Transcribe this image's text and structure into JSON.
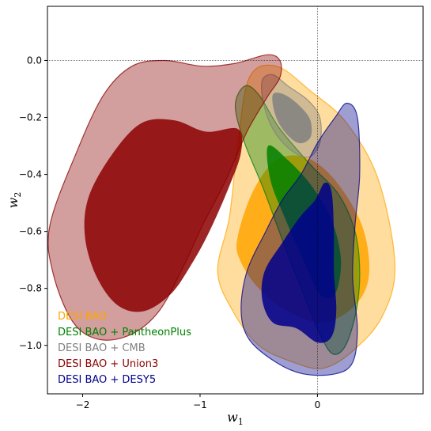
{
  "chart_data": {
    "type": "contour",
    "xlabel": "w",
    "xlabel_sub": "1",
    "ylabel": "w",
    "ylabel_sub": "2",
    "xlim": [
      -2.3,
      0.9
    ],
    "ylim": [
      -1.17,
      0.19
    ],
    "xticks": [
      -2,
      -1,
      0
    ],
    "xtick_labels": [
      "−2",
      "−1",
      "0"
    ],
    "yticks": [
      0.0,
      -0.2,
      -0.4,
      -0.6,
      -0.8,
      -1.0
    ],
    "ytick_labels": [
      "0.0",
      "−0.2",
      "−0.4",
      "−0.6",
      "−0.8",
      "−1.0"
    ],
    "reference_lines": {
      "x": 0,
      "y": 0
    },
    "grid": false,
    "legend_position": "lower-left",
    "series": [
      {
        "name": "DESI BAO",
        "color": "#FFA500",
        "contours": [
          {
            "level": "95%",
            "points": [
              [
                -0.75,
                -0.55
              ],
              [
                -0.68,
                -0.3
              ],
              [
                -0.58,
                -0.06
              ],
              [
                -0.35,
                -0.02
              ],
              [
                -0.05,
                -0.11
              ],
              [
                0.25,
                -0.22
              ],
              [
                0.52,
                -0.42
              ],
              [
                0.66,
                -0.72
              ],
              [
                0.55,
                -0.9
              ],
              [
                0.3,
                -1.02
              ],
              [
                0.05,
                -1.08
              ],
              [
                -0.2,
                -1.06
              ],
              [
                -0.5,
                -1.0
              ],
              [
                -0.72,
                -0.88
              ],
              [
                -0.85,
                -0.74
              ]
            ]
          },
          {
            "level": "68%",
            "points": [
              [
                -0.68,
                -0.62
              ],
              [
                -0.55,
                -0.46
              ],
              [
                -0.35,
                -0.35
              ],
              [
                -0.1,
                -0.34
              ],
              [
                0.15,
                -0.42
              ],
              [
                0.38,
                -0.58
              ],
              [
                0.44,
                -0.75
              ],
              [
                0.32,
                -0.86
              ],
              [
                0.05,
                -0.92
              ],
              [
                -0.25,
                -0.88
              ],
              [
                -0.5,
                -0.8
              ],
              [
                -0.66,
                -0.7
              ]
            ]
          }
        ]
      },
      {
        "name": "DESI BAO + PantheonPlus",
        "color": "#008000",
        "contours": [
          {
            "level": "95%",
            "points": [
              [
                -0.7,
                -0.16
              ],
              [
                -0.62,
                -0.09
              ],
              [
                -0.5,
                -0.12
              ],
              [
                -0.32,
                -0.24
              ],
              [
                -0.05,
                -0.37
              ],
              [
                0.18,
                -0.47
              ],
              [
                0.32,
                -0.6
              ],
              [
                0.36,
                -0.74
              ],
              [
                0.33,
                -0.88
              ],
              [
                0.24,
                -1.0
              ],
              [
                0.13,
                -1.03
              ],
              [
                0.02,
                -0.96
              ],
              [
                -0.1,
                -0.84
              ],
              [
                -0.28,
                -0.65
              ],
              [
                -0.46,
                -0.45
              ],
              [
                -0.62,
                -0.29
              ]
            ]
          },
          {
            "level": "68%",
            "points": [
              [
                -0.42,
                -0.3
              ],
              [
                -0.25,
                -0.35
              ],
              [
                -0.05,
                -0.44
              ],
              [
                0.12,
                -0.56
              ],
              [
                0.2,
                -0.7
              ],
              [
                0.15,
                -0.82
              ],
              [
                0.02,
                -0.82
              ],
              [
                -0.12,
                -0.7
              ],
              [
                -0.28,
                -0.55
              ],
              [
                -0.4,
                -0.42
              ]
            ]
          }
        ]
      },
      {
        "name": "DESI BAO + CMB",
        "color": "#808080",
        "contours": [
          {
            "level": "95%",
            "points": [
              [
                -0.47,
                -0.07
              ],
              [
                -0.38,
                -0.05
              ],
              [
                -0.25,
                -0.09
              ],
              [
                -0.08,
                -0.14
              ],
              [
                0.02,
                -0.2
              ],
              [
                0.02,
                -0.29
              ],
              [
                -0.08,
                -0.34
              ],
              [
                -0.24,
                -0.31
              ],
              [
                -0.38,
                -0.24
              ],
              [
                -0.46,
                -0.15
              ]
            ]
          },
          {
            "level": "68%",
            "points": [
              [
                -0.38,
                -0.12
              ],
              [
                -0.28,
                -0.12
              ],
              [
                -0.15,
                -0.16
              ],
              [
                -0.06,
                -0.21
              ],
              [
                -0.06,
                -0.27
              ],
              [
                -0.16,
                -0.29
              ],
              [
                -0.28,
                -0.25
              ],
              [
                -0.36,
                -0.19
              ]
            ]
          }
        ]
      },
      {
        "name": "DESI BAO + Union3",
        "color": "#8B0000",
        "contours": [
          {
            "level": "95%",
            "points": [
              [
                -2.05,
                -0.32
              ],
              [
                -1.82,
                -0.12
              ],
              [
                -1.58,
                -0.02
              ],
              [
                -1.3,
                0.0
              ],
              [
                -0.98,
                -0.02
              ],
              [
                -0.7,
                -0.01
              ],
              [
                -0.43,
                0.02
              ],
              [
                -0.32,
                0.0
              ],
              [
                -0.32,
                -0.06
              ],
              [
                -0.43,
                -0.13
              ],
              [
                -0.6,
                -0.25
              ],
              [
                -0.78,
                -0.42
              ],
              [
                -0.98,
                -0.58
              ],
              [
                -1.15,
                -0.73
              ],
              [
                -1.35,
                -0.88
              ],
              [
                -1.58,
                -0.96
              ],
              [
                -1.85,
                -0.98
              ],
              [
                -2.08,
                -0.92
              ],
              [
                -2.25,
                -0.75
              ],
              [
                -2.28,
                -0.58
              ]
            ]
          },
          {
            "level": "68%",
            "points": [
              [
                -1.95,
                -0.48
              ],
              [
                -1.75,
                -0.33
              ],
              [
                -1.5,
                -0.22
              ],
              [
                -1.22,
                -0.21
              ],
              [
                -0.95,
                -0.25
              ],
              [
                -0.68,
                -0.24
              ],
              [
                -0.65,
                -0.32
              ],
              [
                -0.75,
                -0.44
              ],
              [
                -0.92,
                -0.6
              ],
              [
                -1.08,
                -0.72
              ],
              [
                -1.25,
                -0.82
              ],
              [
                -1.48,
                -0.88
              ],
              [
                -1.7,
                -0.86
              ],
              [
                -1.88,
                -0.76
              ],
              [
                -1.98,
                -0.62
              ]
            ]
          }
        ]
      },
      {
        "name": "DESI BAO + DESY5",
        "color": "#00008B",
        "contours": [
          {
            "level": "95%",
            "points": [
              [
                0.15,
                -0.2
              ],
              [
                0.25,
                -0.15
              ],
              [
                0.34,
                -0.2
              ],
              [
                0.36,
                -0.4
              ],
              [
                0.32,
                -0.58
              ],
              [
                0.3,
                -0.76
              ],
              [
                0.34,
                -0.94
              ],
              [
                0.3,
                -1.06
              ],
              [
                0.15,
                -1.1
              ],
              [
                -0.12,
                -1.1
              ],
              [
                -0.35,
                -1.06
              ],
              [
                -0.58,
                -0.98
              ],
              [
                -0.65,
                -0.88
              ],
              [
                -0.6,
                -0.74
              ],
              [
                -0.44,
                -0.6
              ],
              [
                -0.3,
                -0.49
              ],
              [
                -0.14,
                -0.4
              ],
              [
                0.0,
                -0.29
              ]
            ]
          },
          {
            "level": "68%",
            "points": [
              [
                0.06,
                -0.43
              ],
              [
                0.12,
                -0.46
              ],
              [
                0.14,
                -0.6
              ],
              [
                0.14,
                -0.74
              ],
              [
                0.16,
                -0.88
              ],
              [
                0.12,
                -0.97
              ],
              [
                0.0,
                -0.99
              ],
              [
                -0.18,
                -0.94
              ],
              [
                -0.38,
                -0.92
              ],
              [
                -0.47,
                -0.84
              ],
              [
                -0.45,
                -0.74
              ],
              [
                -0.3,
                -0.64
              ],
              [
                -0.15,
                -0.55
              ],
              [
                -0.02,
                -0.49
              ]
            ]
          }
        ]
      }
    ]
  }
}
